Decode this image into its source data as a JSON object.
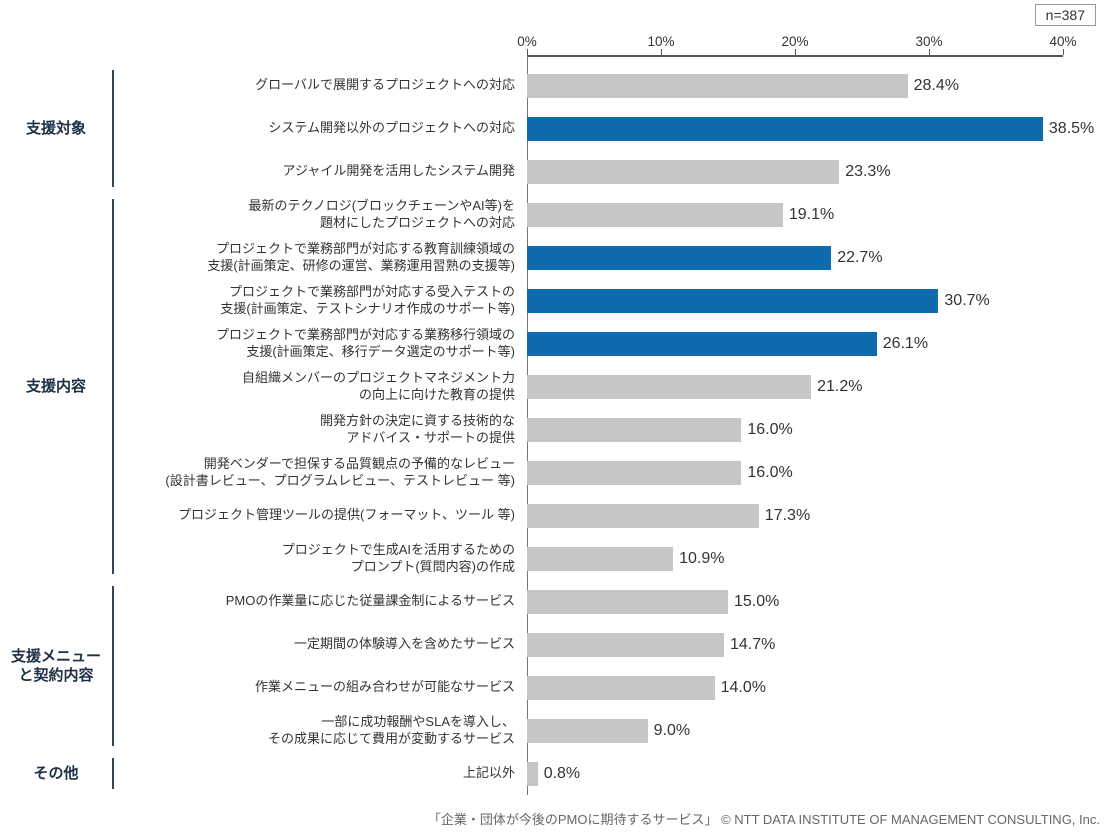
{
  "badge": {
    "n_label": "n=387"
  },
  "footer": {
    "caption": "「企業・団体が今後のPMOに期待するサービス」 © NTT DATA INSTITUTE OF MANAGEMENT CONSULTING, Inc."
  },
  "colors": {
    "highlight_blue": "#0e6bad",
    "bar_gray": "#c6c6c6"
  },
  "chart_data": {
    "type": "bar",
    "orientation": "horizontal",
    "title": "企業・団体が今後のPMOに期待するサービス",
    "sample_size": "n=387",
    "xlim": [
      0,
      40
    ],
    "x_ticks": [
      "0%",
      "10%",
      "20%",
      "30%",
      "40%"
    ],
    "value_unit": "%",
    "grid": false,
    "groups": [
      {
        "label": "支援対象",
        "items": [
          {
            "label": "グローバルで展開するプロジェクトへの対応",
            "value": 28.4,
            "value_label": "28.4%",
            "highlight": false
          },
          {
            "label": "システム開発以外のプロジェクトへの対応",
            "value": 38.5,
            "value_label": "38.5%",
            "highlight": true
          },
          {
            "label": "アジャイル開発を活用したシステム開発",
            "value": 23.3,
            "value_label": "23.3%",
            "highlight": false
          }
        ]
      },
      {
        "label": "支援内容",
        "items": [
          {
            "label": "最新のテクノロジ(ブロックチェーンやAI等)を\n題材にしたプロジェクトへの対応",
            "value": 19.1,
            "value_label": "19.1%",
            "highlight": false
          },
          {
            "label": "プロジェクトで業務部門が対応する教育訓練領域の\n支援(計画策定、研修の運営、業務運用習熟の支援等)",
            "value": 22.7,
            "value_label": "22.7%",
            "highlight": true
          },
          {
            "label": "プロジェクトで業務部門が対応する受入テストの\n支援(計画策定、テストシナリオ作成のサポート等)",
            "value": 30.7,
            "value_label": "30.7%",
            "highlight": true
          },
          {
            "label": "プロジェクトで業務部門が対応する業務移行領域の\n支援(計画策定、移行データ選定のサポート等)",
            "value": 26.1,
            "value_label": "26.1%",
            "highlight": true
          },
          {
            "label": "自組織メンバーのプロジェクトマネジメント力\nの向上に向けた教育の提供",
            "value": 21.2,
            "value_label": "21.2%",
            "highlight": false
          },
          {
            "label": "開発方針の決定に資する技術的な\nアドバイス・サポートの提供",
            "value": 16.0,
            "value_label": "16.0%",
            "highlight": false
          },
          {
            "label": "開発ベンダーで担保する品質観点の予備的なレビュー\n(設計書レビュー、プログラムレビュー、テストレビュー 等)",
            "value": 16.0,
            "value_label": "16.0%",
            "highlight": false
          },
          {
            "label": "プロジェクト管理ツールの提供(フォーマット、ツール 等)",
            "value": 17.3,
            "value_label": "17.3%",
            "highlight": false
          },
          {
            "label": "プロジェクトで生成AIを活用するための\nプロンプト(質問内容)の作成",
            "value": 10.9,
            "value_label": "10.9%",
            "highlight": false
          }
        ]
      },
      {
        "label": "支援メニュー\nと契約内容",
        "items": [
          {
            "label": "PMOの作業量に応じた従量課金制によるサービス",
            "value": 15.0,
            "value_label": "15.0%",
            "highlight": false
          },
          {
            "label": "一定期間の体験導入を含めたサービス",
            "value": 14.7,
            "value_label": "14.7%",
            "highlight": false
          },
          {
            "label": "作業メニューの組み合わせが可能なサービス",
            "value": 14.0,
            "value_label": "14.0%",
            "highlight": false
          },
          {
            "label": "一部に成功報酬やSLAを導入し、\nその成果に応じて費用が変動するサービス",
            "value": 9.0,
            "value_label": "9.0%",
            "highlight": false
          }
        ]
      },
      {
        "label": "その他",
        "items": [
          {
            "label": "上記以外",
            "value": 0.8,
            "value_label": "0.8%",
            "highlight": false
          }
        ]
      }
    ]
  }
}
